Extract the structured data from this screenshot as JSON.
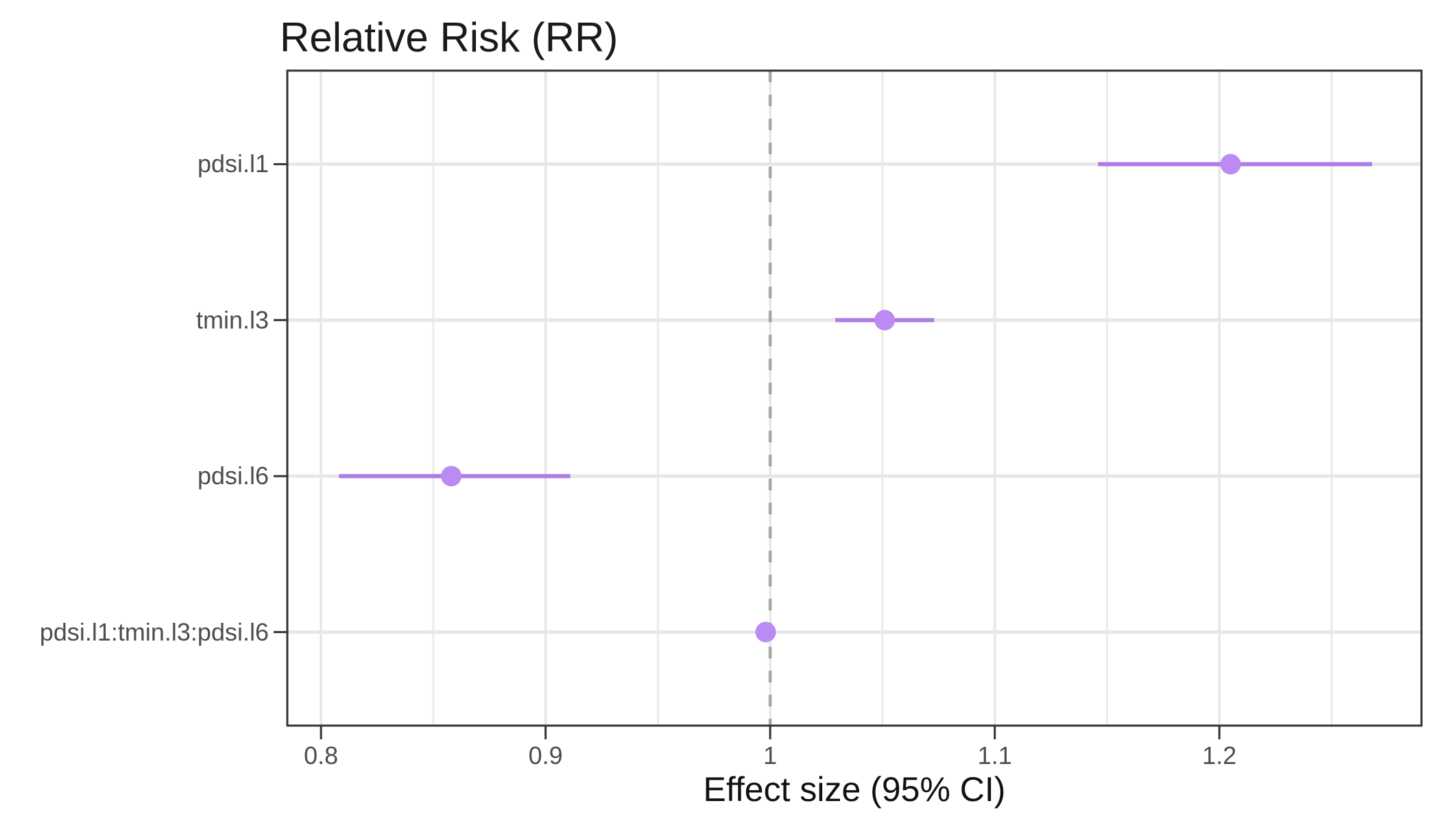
{
  "chart_data": {
    "type": "scatter",
    "subtype": "forest-pointrange",
    "title": "Relative Risk (RR)",
    "xlabel": "Effect size (95% CI)",
    "ylabel": "",
    "legend": "none",
    "grid": "on",
    "xlim": [
      0.785,
      1.29
    ],
    "x_major_ticks": [
      0.8,
      0.9,
      1.0,
      1.1,
      1.2
    ],
    "x_tick_labels": [
      "0.8",
      "0.9",
      "1",
      "1.1",
      "1.2"
    ],
    "x_minor_ticks": [
      0.85,
      0.95,
      1.05,
      1.15,
      1.25
    ],
    "reference_line_x": 1.0,
    "categories": [
      "pdsi.l1",
      "tmin.l3",
      "pdsi.l6",
      "pdsi.l1:tmin.l3:pdsi.l6"
    ],
    "points": [
      {
        "label": "pdsi.l1",
        "estimate": 1.205,
        "ci_low": 1.146,
        "ci_high": 1.268
      },
      {
        "label": "tmin.l3",
        "estimate": 1.051,
        "ci_low": 1.029,
        "ci_high": 1.073
      },
      {
        "label": "pdsi.l6",
        "estimate": 0.858,
        "ci_low": 0.808,
        "ci_high": 0.911
      },
      {
        "label": "pdsi.l1:tmin.l3:pdsi.l6",
        "estimate": 0.998,
        "ci_low": 0.994,
        "ci_high": 1.002
      }
    ]
  },
  "colors": {
    "point_fill": "#ba8bf2",
    "ci_line": "#ae7ce6",
    "reference_line": "#a6a6a6",
    "grid_major": "#e7e7e7",
    "grid_minor": "#ebebeb",
    "panel_border": "#333333",
    "tick_mark": "#333333",
    "tick_label": "#4d4d4d",
    "title_text": "#1a1a1a",
    "panel_background": "#ffffff"
  }
}
